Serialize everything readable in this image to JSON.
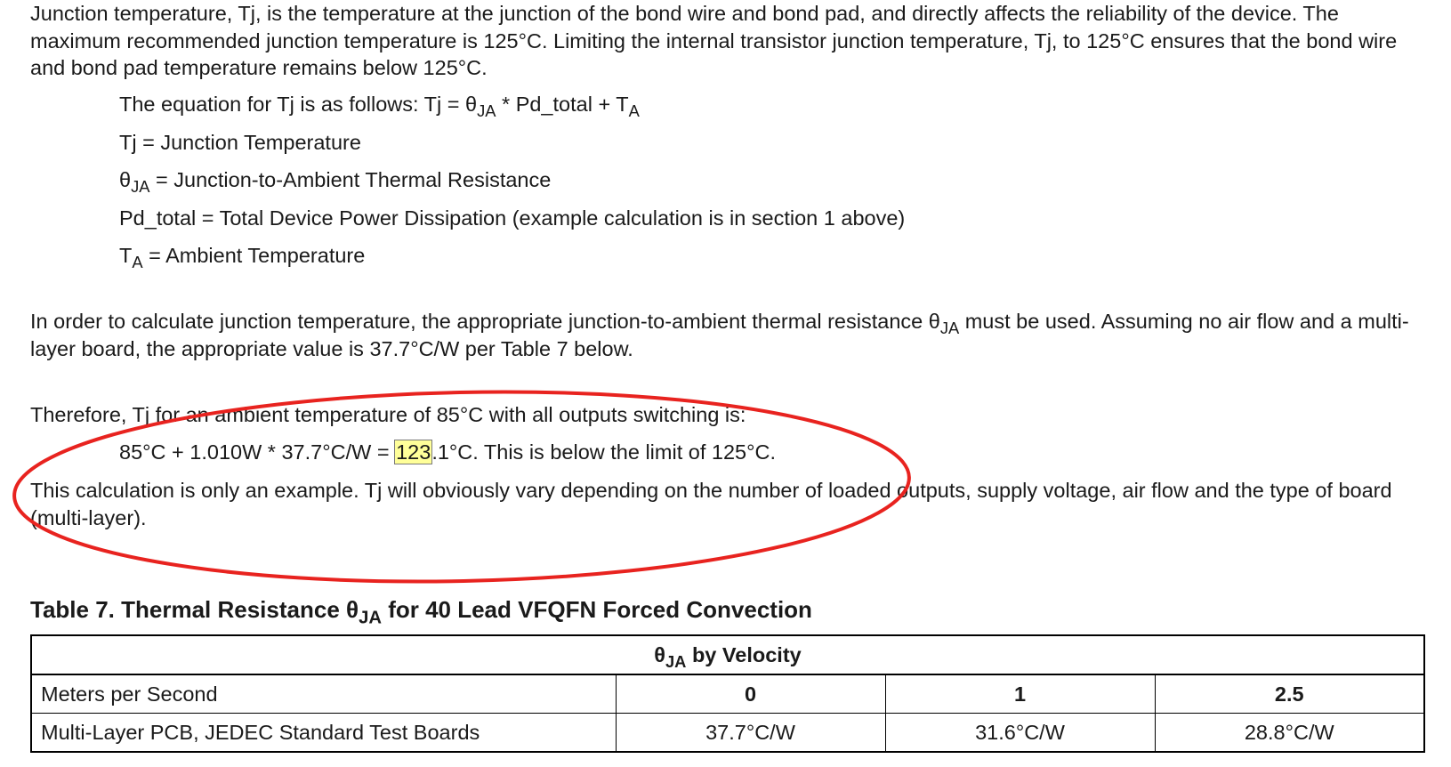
{
  "intro": {
    "text": "Junction temperature, Tj, is the temperature at the junction of the bond wire and bond pad, and directly affects the reliability of the device. The maximum recommended junction temperature is 125°C. Limiting the internal transistor junction temperature, Tj, to 125°C ensures that the bond wire and bond pad temperature remains below 125°C."
  },
  "equation": {
    "line_prefix": "The equation for Tj is as follows: Tj = θ",
    "theta_sub": "JA",
    "line_mid": " * Pd_total + T",
    "ta_sub": "A",
    "def_tj": "Tj = Junction Temperature",
    "def_theta_symbol": "θ",
    "def_theta_sub": "JA",
    "def_theta_text": " = Junction-to-Ambient Thermal Resistance",
    "def_pd": "Pd_total = Total Device Power Dissipation (example calculation is in section 1 above)",
    "def_ta_symbol": "T",
    "def_ta_sub": "A",
    "def_ta_text": " = Ambient Temperature"
  },
  "resistance_para": {
    "text_before": "In order to calculate junction temperature, the appropriate junction-to-ambient thermal resistance θ",
    "sub": "JA",
    "text_after": " must be used. Assuming no air flow and a multi-layer board, the appropriate value is 37.7°C/W per Table 7 below."
  },
  "therefore": {
    "text": "Therefore, Tj for an ambient temperature of 85°C with all outputs switching is:",
    "calc_before": "85°C + 1.010W * 37.7°C/W = ",
    "calc_highlight": "123",
    "calc_after": ".1°C. This is below the limit of 125°C."
  },
  "note": {
    "text": "This calculation is only an example. Tj will obviously vary depending on the number of loaded outputs, supply voltage, air flow and the type of board (multi-layer)."
  },
  "table7": {
    "title_before": "Table 7. Thermal Resistance θ",
    "title_sub": "JA",
    "title_after": " for 40 Lead VFQFN Forced Convection",
    "header_symbol": "θ",
    "header_sub": "JA",
    "header_text": " by Velocity",
    "row1": {
      "label": "Meters per Second",
      "values": [
        "0",
        "1",
        "2.5"
      ]
    },
    "row2": {
      "label": "Multi-Layer PCB, JEDEC Standard Test Boards",
      "values": [
        "37.7°C/W",
        "31.6°C/W",
        "28.8°C/W"
      ]
    }
  },
  "colors": {
    "annotation_ellipse": "#e8231f",
    "highlight": "#ffff99"
  }
}
